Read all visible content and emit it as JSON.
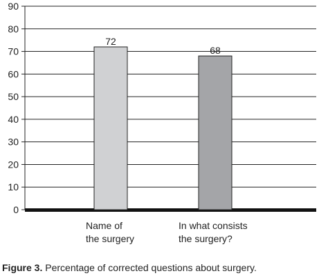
{
  "chart_data": {
    "type": "bar",
    "categories": [
      [
        "Name of",
        "the surgery"
      ],
      [
        "In what consists",
        "the surgery?"
      ]
    ],
    "values": [
      72,
      68
    ],
    "data_labels": [
      "72",
      "68"
    ],
    "ylim": [
      0,
      90
    ],
    "yticks": [
      "0",
      "10",
      "20",
      "30",
      "40",
      "50",
      "60",
      "70",
      "80",
      "90"
    ],
    "grid": true,
    "bar_colors": [
      "#d0d1d3",
      "#a4a5a8"
    ]
  },
  "caption": {
    "label": "Figure 3.",
    "text": " Percentage of corrected questions about surgery."
  }
}
